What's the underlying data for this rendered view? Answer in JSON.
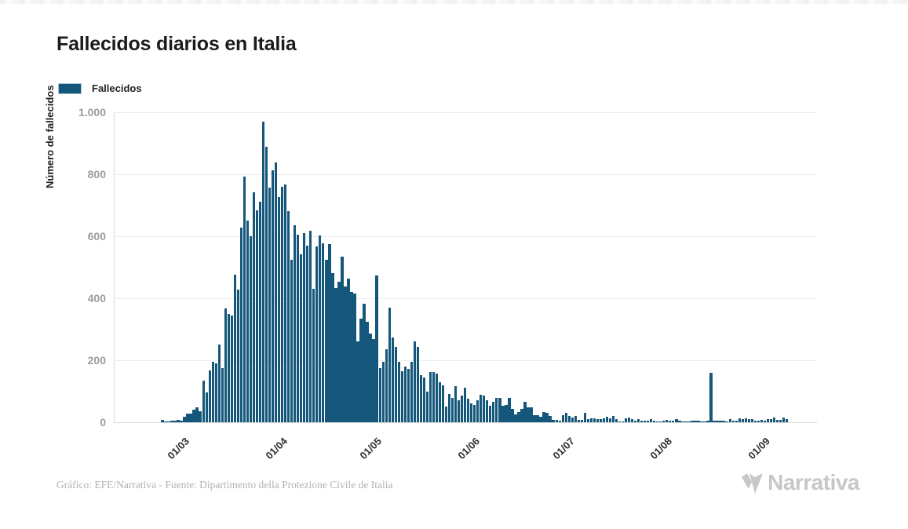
{
  "header": {
    "title": "Fallecidos diarios en Italia"
  },
  "legend": {
    "items": [
      {
        "label": "Fallecidos",
        "color": "#15577A"
      }
    ]
  },
  "footer": {
    "credit": "Gráfico: EFE/Narrativa - Fuente: Dipartimento della Protezione Civile de Italia",
    "brand": "Narrativa"
  },
  "colors": {
    "bar": "#15577A",
    "title": "#1b1b1b",
    "y_tick": "#9d9d9d",
    "x_tick": "#2f2f2f",
    "gridline": "#ececec",
    "footer_text": "#b3b3b3",
    "brand_gray": "#c7c7c7"
  },
  "chart_data": {
    "type": "bar",
    "title": "Fallecidos diarios en Italia",
    "series_name": "Fallecidos",
    "xlabel": "",
    "ylabel": "Número de fallecidos",
    "ylim": [
      0,
      1000
    ],
    "grid": "horizontal",
    "legend_position": "top-left",
    "bar_color": "#15577A",
    "y_ticks": [
      "0",
      "200",
      "400",
      "600",
      "800",
      "1.000"
    ],
    "y_tick_values": [
      0,
      200,
      400,
      600,
      800,
      1000
    ],
    "x_start_date": "2020-02-09",
    "x_end_date": "2020-09-18",
    "x_tick_labels": [
      "01/03",
      "01/04",
      "01/05",
      "01/06",
      "01/07",
      "01/08",
      "01/09"
    ],
    "x_tick_indices": [
      21,
      52,
      82,
      113,
      143,
      174,
      205
    ],
    "values": [
      0,
      0,
      0,
      0,
      0,
      0,
      0,
      0,
      0,
      0,
      0,
      0,
      0,
      0,
      0,
      7,
      3,
      2,
      5,
      4,
      8,
      5,
      18,
      27,
      28,
      41,
      49,
      36,
      133,
      97,
      168,
      196,
      189,
      250,
      175,
      368,
      349,
      345,
      475,
      427,
      627,
      793,
      651,
      601,
      743,
      683,
      712,
      969,
      889,
      756,
      812,
      837,
      727,
      760,
      766,
      681,
      525,
      636,
      604,
      542,
      610,
      570,
      619,
      431,
      566,
      602,
      578,
      525,
      575,
      482,
      433,
      454,
      534,
      437,
      464,
      420,
      415,
      260,
      333,
      382,
      323,
      285,
      269,
      474,
      174,
      195,
      236,
      369,
      274,
      243,
      194,
      165,
      179,
      172,
      195,
      262,
      242,
      153,
      145,
      99,
      162,
      161,
      156,
      130,
      119,
      50,
      92,
      78,
      117,
      70,
      87,
      111,
      75,
      60,
      55,
      71,
      88,
      85,
      72,
      53,
      65,
      79,
      79,
      53,
      56,
      78,
      44,
      26,
      34,
      43,
      66,
      47,
      49,
      24,
      23,
      18,
      34,
      30,
      20,
      8,
      8,
      6,
      23,
      30,
      21,
      15,
      21,
      8,
      8,
      30,
      10,
      12,
      12,
      9,
      9,
      13,
      17,
      13,
      20,
      11,
      3,
      3,
      13,
      15,
      10,
      6,
      10,
      5,
      5,
      5,
      11,
      6,
      3,
      3,
      5,
      8,
      5,
      6,
      10,
      6,
      3,
      2,
      2,
      4,
      6,
      6,
      3,
      3,
      4,
      160,
      4,
      4,
      5,
      6,
      3,
      9,
      5,
      4,
      13,
      10,
      13,
      9,
      9,
      6,
      4,
      8,
      6,
      10,
      10,
      16,
      8,
      8,
      14,
      10,
      0,
      0,
      0,
      0,
      0,
      0,
      0,
      0,
      0
    ]
  }
}
